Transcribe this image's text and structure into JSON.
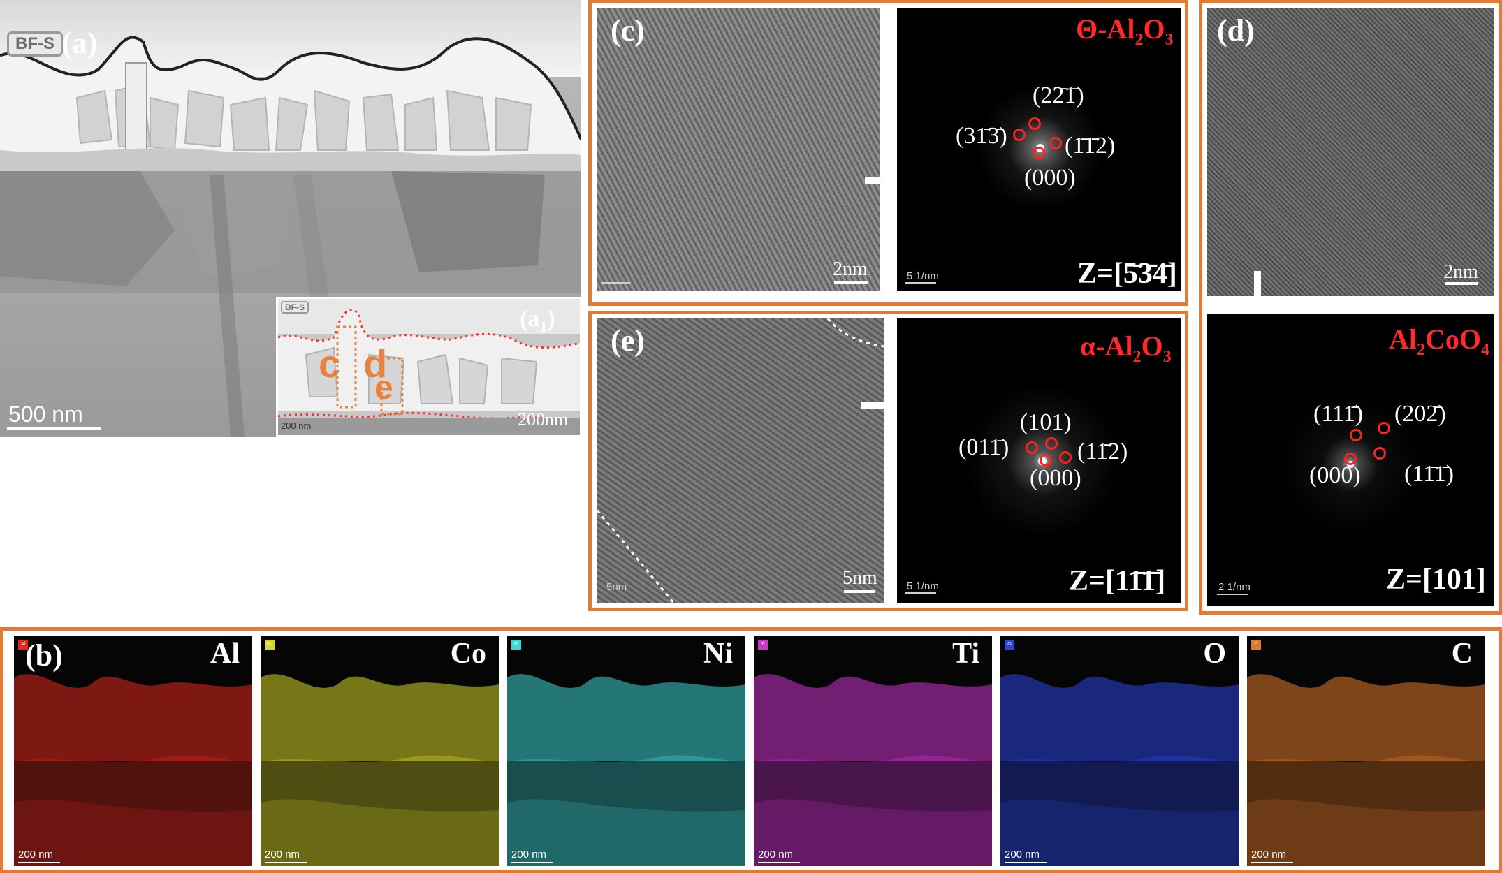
{
  "panel_a": {
    "label": "(a)",
    "tag": "BF-S",
    "scale": "500 nm"
  },
  "panel_a1": {
    "label": "(a1)",
    "label_main": "(a",
    "label_sub": "1",
    "label_close": ")",
    "tag": "BF-S",
    "scale_small": "200 nm",
    "scale": "200nm",
    "marker_c": "c",
    "marker_d": "d",
    "marker_e": "e"
  },
  "panel_c": {
    "label": "(c)",
    "scale": "2nm",
    "fft_scale": "5 1/nm",
    "phase": "Θ-Al2O3",
    "phase_prefix": "Θ-Al",
    "phase_sub1": "2",
    "phase_mid": "O",
    "phase_sub2": "3",
    "zone_axis": "Z=[5̄3̄4̄]",
    "indices": [
      "(22̄1̄)",
      "(31̄3̄)",
      "(1̄1̄2)",
      "(000)"
    ]
  },
  "panel_d": {
    "label": "(d)",
    "scale": "2nm",
    "fft_scale": "2 1/nm",
    "phase": "Al2CoO4",
    "phase_prefix": "Al",
    "phase_sub1": "2",
    "phase_mid": "CoO",
    "phase_sub2": "4",
    "zone_axis": "Z=[101]",
    "indices": [
      "(111̄)",
      "(202̄)",
      "(000)",
      "(11̄1̄)"
    ]
  },
  "panel_e": {
    "label": "(e)",
    "scale": "5nm",
    "fft_scale": "5 1/nm",
    "phase": "α-Al2O3",
    "phase_prefix": "α-Al",
    "phase_sub1": "2",
    "phase_mid": "O",
    "phase_sub2": "3",
    "zone_axis": "Z=[11̄1̄]",
    "indices": [
      "(101)",
      "(011̄)",
      "(11̄2)",
      "(000)"
    ]
  },
  "panel_b": {
    "label": "(b)",
    "maps": [
      {
        "element": "Al",
        "tag": "Al",
        "scale": "200 nm",
        "color": "#e0281e"
      },
      {
        "element": "Co",
        "tag": "Co",
        "scale": "200 nm",
        "color": "#d6d62a"
      },
      {
        "element": "Ni",
        "tag": "Ni",
        "scale": "200 nm",
        "color": "#3fd6d6"
      },
      {
        "element": "Ti",
        "tag": "Ti",
        "scale": "200 nm",
        "color": "#cc33cc"
      },
      {
        "element": "O",
        "tag": "O",
        "scale": "200 nm",
        "color": "#2a45e0"
      },
      {
        "element": "C",
        "tag": "C",
        "scale": "200 nm",
        "color": "#e07a2a"
      }
    ]
  },
  "colors": {
    "frame": "#e07b39",
    "index_ring": "#ff2020",
    "phase_label": "#ff2a2a"
  }
}
